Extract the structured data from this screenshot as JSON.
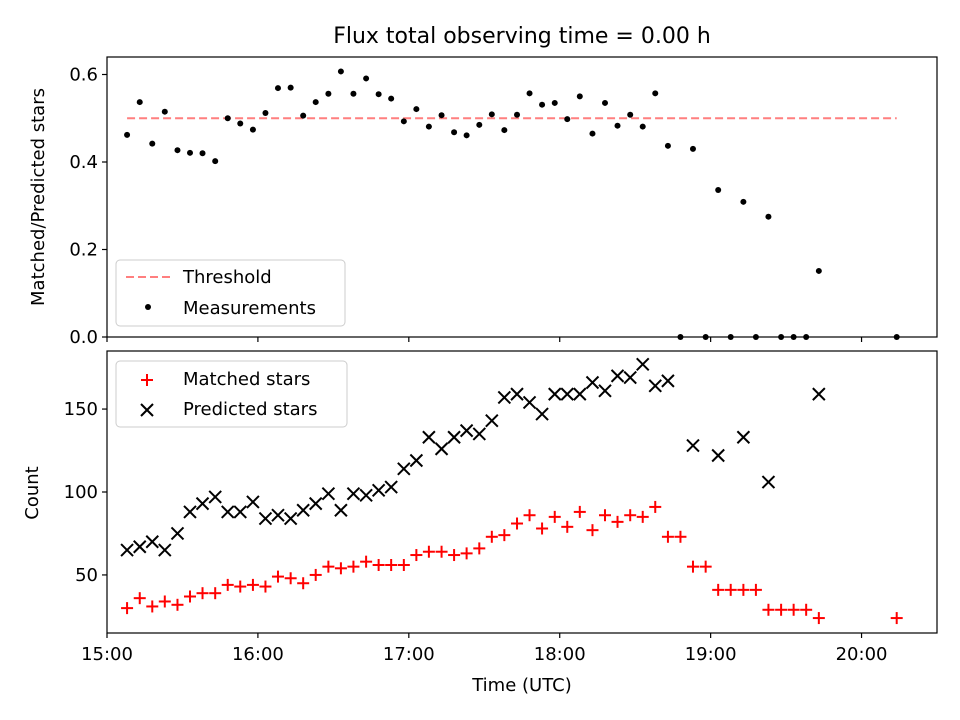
{
  "title": "Flux total observing time = 0.00 h",
  "chart_data": [
    {
      "type": "scatter",
      "ylabel": "Matched/Predicted stars",
      "xlim": [
        15.0,
        20.5
      ],
      "ylim": [
        0,
        0.64
      ],
      "yticks": [
        0.0,
        0.2,
        0.4,
        0.6
      ],
      "ytick_labels": [
        "0.0",
        "0.2",
        "0.4",
        "0.6"
      ],
      "xtick_labels_hidden": true,
      "grid": false,
      "legend": {
        "placement": "lower-left",
        "entries": [
          "Threshold",
          "Measurements"
        ]
      },
      "series": [
        {
          "name": "Threshold",
          "kind": "line",
          "style": "dashed",
          "color": "#ff7f7f",
          "x": [
            15.133,
            20.233
          ],
          "y": [
            0.5,
            0.5
          ]
        },
        {
          "name": "Measurements",
          "kind": "scatter",
          "marker": "dot",
          "color": "#000000",
          "x": [
            15.133,
            15.217,
            15.3,
            15.383,
            15.467,
            15.55,
            15.633,
            15.717,
            15.8,
            15.883,
            15.967,
            16.05,
            16.133,
            16.217,
            16.3,
            16.383,
            16.467,
            16.55,
            16.633,
            16.717,
            16.8,
            16.883,
            16.967,
            17.05,
            17.133,
            17.217,
            17.3,
            17.383,
            17.467,
            17.55,
            17.633,
            17.717,
            17.8,
            17.883,
            17.967,
            18.05,
            18.133,
            18.217,
            18.3,
            18.383,
            18.467,
            18.55,
            18.633,
            18.717,
            18.8,
            18.883,
            18.967,
            19.05,
            19.133,
            19.217,
            19.3,
            19.383,
            19.467,
            19.55,
            19.633,
            19.717,
            20.233
          ],
          "y": [
            0.462,
            0.537,
            0.442,
            0.515,
            0.427,
            0.421,
            0.42,
            0.402,
            0.5,
            0.488,
            0.474,
            0.512,
            0.569,
            0.57,
            0.506,
            0.537,
            0.556,
            0.607,
            0.556,
            0.591,
            0.555,
            0.545,
            0.493,
            0.521,
            0.481,
            0.507,
            0.468,
            0.461,
            0.485,
            0.509,
            0.473,
            0.508,
            0.557,
            0.531,
            0.535,
            0.498,
            0.55,
            0.465,
            0.535,
            0.483,
            0.508,
            0.481,
            0.557,
            0.437,
            0.0,
            0.43,
            0.0,
            0.336,
            0.0,
            0.309,
            0.0,
            0.275,
            0.0,
            0.0,
            0.0,
            0.151,
            0.0
          ]
        }
      ]
    },
    {
      "type": "scatter",
      "xlabel": "Time (UTC)",
      "ylabel": "Count",
      "xlim": [
        15.0,
        20.5
      ],
      "ylim": [
        15,
        185
      ],
      "yticks": [
        50,
        100,
        150
      ],
      "ytick_labels": [
        "50",
        "100",
        "150"
      ],
      "xticks": [
        15,
        16,
        17,
        18,
        19,
        20
      ],
      "xtick_labels": [
        "15:00",
        "16:00",
        "17:00",
        "18:00",
        "19:00",
        "20:00"
      ],
      "grid": false,
      "legend": {
        "placement": "top-left",
        "entries": [
          "Matched stars",
          "Predicted stars"
        ]
      },
      "series": [
        {
          "name": "Matched stars",
          "kind": "scatter",
          "marker": "plus",
          "color": "#ff0000",
          "x": [
            15.133,
            15.217,
            15.3,
            15.383,
            15.467,
            15.55,
            15.633,
            15.717,
            15.8,
            15.883,
            15.967,
            16.05,
            16.133,
            16.217,
            16.3,
            16.383,
            16.467,
            16.55,
            16.633,
            16.717,
            16.8,
            16.883,
            16.967,
            17.05,
            17.133,
            17.217,
            17.3,
            17.383,
            17.467,
            17.55,
            17.633,
            17.717,
            17.8,
            17.883,
            17.967,
            18.05,
            18.133,
            18.217,
            18.3,
            18.383,
            18.467,
            18.55,
            18.633,
            18.717,
            18.8,
            18.883,
            18.967,
            19.05,
            19.133,
            19.217,
            19.3,
            19.383,
            19.467,
            19.55,
            19.633,
            19.717,
            20.233
          ],
          "y": [
            30,
            36,
            31,
            34,
            32,
            37,
            39,
            39,
            44,
            43,
            44,
            43,
            49,
            48,
            45,
            50,
            55,
            54,
            55,
            58,
            56,
            56,
            56,
            62,
            64,
            64,
            62,
            63,
            66,
            73,
            74,
            81,
            86,
            78,
            85,
            79,
            88,
            77,
            86,
            82,
            86,
            85,
            91,
            73,
            73,
            55,
            55,
            41,
            41,
            41,
            41,
            29,
            29,
            29,
            29,
            24,
            24
          ]
        },
        {
          "name": "Predicted stars",
          "kind": "scatter",
          "marker": "x",
          "color": "#000000",
          "x": [
            15.133,
            15.217,
            15.3,
            15.383,
            15.467,
            15.55,
            15.633,
            15.717,
            15.8,
            15.883,
            15.967,
            16.05,
            16.133,
            16.217,
            16.3,
            16.383,
            16.467,
            16.55,
            16.633,
            16.717,
            16.8,
            16.883,
            16.967,
            17.05,
            17.133,
            17.217,
            17.3,
            17.383,
            17.467,
            17.55,
            17.633,
            17.717,
            17.8,
            17.883,
            17.967,
            18.05,
            18.133,
            18.217,
            18.3,
            18.383,
            18.467,
            18.55,
            18.633,
            18.717,
            18.883,
            19.05,
            19.217,
            19.383,
            19.717
          ],
          "y": [
            65,
            67,
            70,
            65,
            75,
            88,
            93,
            97,
            88,
            88,
            94,
            84,
            86,
            84,
            89,
            93,
            99,
            89,
            99,
            98,
            101,
            103,
            114,
            119,
            133,
            126,
            133,
            137,
            135,
            143,
            157,
            159,
            154,
            147,
            159,
            159,
            159,
            166,
            161,
            170,
            169,
            177,
            164,
            167,
            128,
            122,
            133,
            106,
            159
          ]
        }
      ]
    }
  ]
}
